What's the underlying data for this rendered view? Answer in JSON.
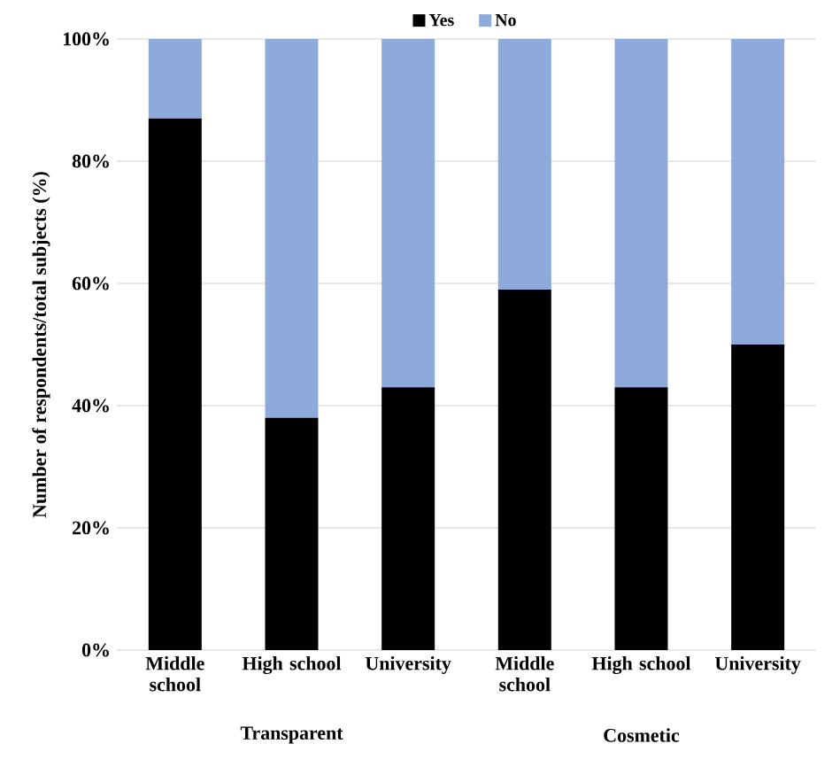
{
  "chart_data": {
    "type": "bar",
    "stacked": true,
    "ylabel": "Number of respondents/total  subjects (%)",
    "categories": [
      "Middle school",
      "High school",
      "University",
      "Middle school",
      "High school",
      "University"
    ],
    "series": [
      {
        "name": "Yes",
        "color": "#000000",
        "values": [
          87,
          38,
          43,
          59,
          43,
          50
        ]
      },
      {
        "name": "No",
        "color": "#8eaadb",
        "values": [
          13,
          62,
          57,
          41,
          57,
          50
        ]
      }
    ],
    "ylim": [
      0,
      100
    ],
    "yticks": [
      {
        "value": 0,
        "label": "0%"
      },
      {
        "value": 20,
        "label": "20%"
      },
      {
        "value": 40,
        "label": "40%"
      },
      {
        "value": 60,
        "label": "60%"
      },
      {
        "value": 80,
        "label": "80%"
      },
      {
        "value": 100,
        "label": "100%"
      }
    ],
    "grid": "y",
    "legend": "top",
    "annotations": [
      "Transparent",
      "Cosmetic"
    ]
  }
}
